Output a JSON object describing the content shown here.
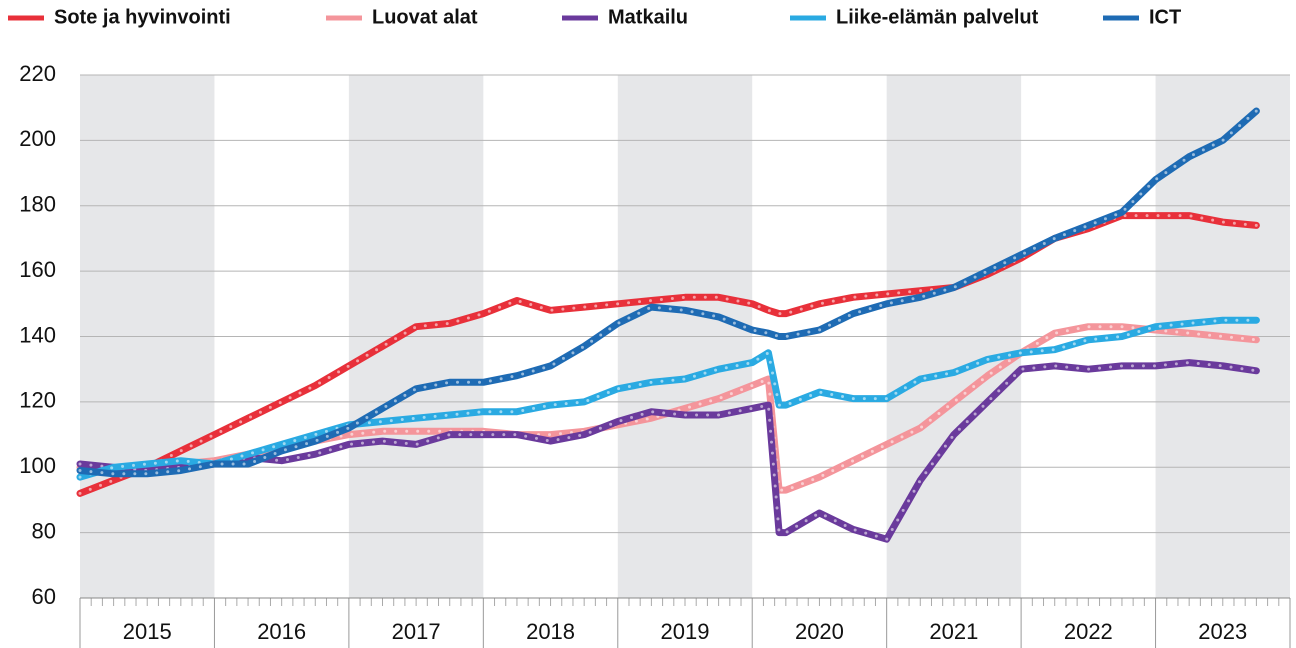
{
  "chart_data": {
    "type": "line",
    "x": [
      2015.0,
      2015.25,
      2015.5,
      2015.75,
      2016.0,
      2016.25,
      2016.5,
      2016.75,
      2017.0,
      2017.25,
      2017.5,
      2017.75,
      2018.0,
      2018.25,
      2018.5,
      2018.75,
      2019.0,
      2019.25,
      2019.5,
      2019.75,
      2020.0,
      2020.12,
      2020.2,
      2020.25,
      2020.5,
      2020.75,
      2021.0,
      2021.25,
      2021.5,
      2021.75,
      2022.0,
      2022.25,
      2022.5,
      2022.75,
      2023.0,
      2023.25,
      2023.5,
      2023.75
    ],
    "series": [
      {
        "name": "Sote ja hyvinvointi",
        "color": "#e8303a",
        "values": [
          92,
          96,
          100,
          105,
          110,
          115,
          120,
          125,
          131,
          137,
          143,
          144,
          147,
          151,
          148,
          149,
          150,
          151,
          152,
          152,
          150,
          148,
          147,
          147,
          150,
          152,
          153,
          154,
          155,
          159,
          164,
          170,
          173,
          177,
          177,
          177,
          175,
          174
        ]
      },
      {
        "name": "Luovat alat",
        "color": "#f4959b",
        "values": [
          100,
          99,
          100,
          101,
          102,
          104,
          106,
          108,
          110,
          111,
          111,
          111,
          111,
          110,
          110,
          111,
          113,
          115,
          118,
          121,
          125,
          127,
          93,
          93,
          97,
          102,
          107,
          112,
          120,
          128,
          135,
          141,
          143,
          143,
          142,
          141,
          140,
          139
        ]
      },
      {
        "name": "Matkailu",
        "color": "#6a3a9c",
        "values": [
          101,
          100,
          99,
          100,
          101,
          103,
          102,
          104,
          107,
          108,
          107,
          110,
          110,
          110,
          108,
          110,
          114,
          117,
          116,
          116,
          118,
          119,
          80,
          80,
          86,
          81,
          78,
          96,
          110,
          120,
          130,
          131,
          130,
          131,
          131,
          132,
          131,
          129.5
        ]
      },
      {
        "name": "Liike-elämän palvelut",
        "color": "#2aaae2",
        "values": [
          97,
          100,
          101,
          102,
          101,
          104,
          107,
          110,
          113,
          114,
          115,
          116,
          117,
          117,
          119,
          120,
          124,
          126,
          127,
          130,
          132,
          135,
          119,
          119,
          123,
          121,
          121,
          127,
          129,
          133,
          135,
          136,
          139,
          140,
          143,
          144,
          145,
          145
        ]
      },
      {
        "name": "ICT",
        "color": "#1e6bb4",
        "values": [
          99,
          98,
          98,
          99,
          101,
          101,
          105,
          108,
          112,
          118,
          124,
          126,
          126,
          128,
          131,
          137,
          144,
          149,
          148,
          146,
          142,
          141,
          140,
          140,
          142,
          147,
          150,
          152,
          155,
          160,
          165,
          170,
          174,
          178,
          188,
          195,
          200,
          209
        ]
      }
    ],
    "xlim": [
      2015,
      2024
    ],
    "xticks": [
      {
        "value": 2015.5,
        "label": "2015"
      },
      {
        "value": 2016.5,
        "label": "2016"
      },
      {
        "value": 2017.5,
        "label": "2017"
      },
      {
        "value": 2018.5,
        "label": "2018"
      },
      {
        "value": 2019.5,
        "label": "2019"
      },
      {
        "value": 2020.5,
        "label": "2020"
      },
      {
        "value": 2021.5,
        "label": "2021"
      },
      {
        "value": 2022.5,
        "label": "2022"
      },
      {
        "value": 2023.5,
        "label": "2023"
      }
    ],
    "ylim": [
      60,
      220
    ],
    "yticks": [
      60,
      80,
      100,
      120,
      140,
      160,
      180,
      200,
      220
    ],
    "grid": true,
    "alternating_bands": true,
    "legend": "top"
  }
}
